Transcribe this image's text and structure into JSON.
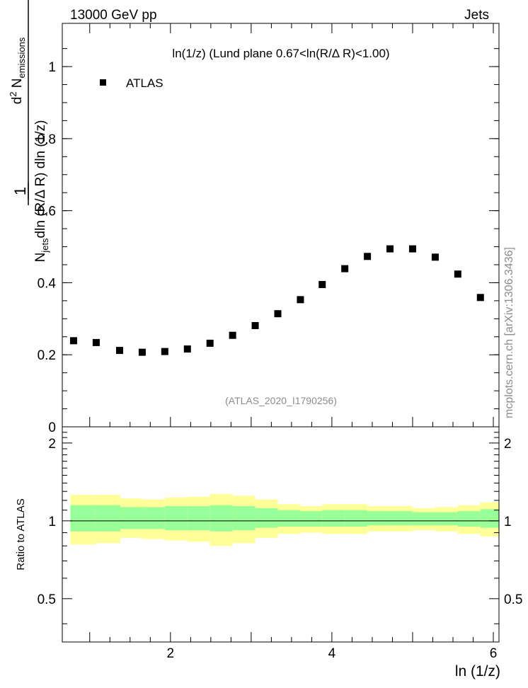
{
  "header": {
    "left": "13000 GeV pp",
    "right": "Jets"
  },
  "side_label": "mcplots.cern.ch [arXiv:1306.3436]",
  "watermark": "(ATLAS_2020_I1790256)",
  "colors": {
    "band_outer": "#ffff99",
    "band_inner": "#99ff99",
    "marker": "#000000",
    "watermark": "#8c8c8c"
  },
  "chart_data": [
    {
      "type": "scatter",
      "title": "ln(1/z) (Lund plane 0.67<ln(R/Δ R)<1.00)",
      "ylabel": "1/N_jets dln (R/Δ R) dln (1/z) · d² N_emissions",
      "ylabel_parts": {
        "frac_num": "1",
        "frac_den_base": "N",
        "frac_den_sub": "jets",
        "frac_den_rest": "dln (R/Δ R) dln (1/z)",
        "d2_prefix": "d",
        "d2_sup": "2",
        "d2_base": " N",
        "d2_sub": "emissions"
      },
      "xlabel": "",
      "xlim": [
        0.66,
        6.07
      ],
      "ylim": [
        0,
        1.12
      ],
      "y_ticks": [
        0,
        0.2,
        0.4,
        0.6,
        0.8,
        1
      ],
      "y_tick_labels": [
        "0",
        "0.2",
        "0.4",
        "0.6",
        "0.8",
        "1"
      ],
      "legend": {
        "position": "top-left",
        "entries": [
          "ATLAS"
        ]
      },
      "series": [
        {
          "name": "ATLAS",
          "x": [
            0.8,
            1.08,
            1.37,
            1.65,
            1.93,
            2.21,
            2.49,
            2.77,
            3.05,
            3.33,
            3.61,
            3.88,
            4.16,
            4.44,
            4.72,
            5.0,
            5.28,
            5.56,
            5.84
          ],
          "y": [
            0.239,
            0.234,
            0.212,
            0.207,
            0.209,
            0.216,
            0.232,
            0.254,
            0.281,
            0.314,
            0.353,
            0.395,
            0.439,
            0.473,
            0.494,
            0.494,
            0.471,
            0.424,
            0.359
          ]
        }
      ]
    },
    {
      "type": "area",
      "title": "",
      "ylabel": "Ratio to ATLAS",
      "xlabel": "ln (1/z)",
      "xlim": [
        0.66,
        6.07
      ],
      "ylim": [
        0.34,
        2.31
      ],
      "x_ticks": [
        2,
        4,
        6
      ],
      "x_tick_labels": [
        "2",
        "4",
        "6"
      ],
      "y_ticks": [
        0.5,
        1,
        2
      ],
      "y_tick_labels": [
        "0.5",
        "1",
        "2"
      ],
      "reference_line": 1,
      "bins": [
        {
          "lo": 0.76,
          "hi": 1.07,
          "inner": [
            0.91,
            1.15
          ],
          "outer": [
            0.81,
            1.26
          ]
        },
        {
          "lo": 1.07,
          "hi": 1.38,
          "inner": [
            0.91,
            1.15
          ],
          "outer": [
            0.82,
            1.26
          ]
        },
        {
          "lo": 1.38,
          "hi": 1.65,
          "inner": [
            0.93,
            1.13
          ],
          "outer": [
            0.86,
            1.22
          ]
        },
        {
          "lo": 1.65,
          "hi": 1.93,
          "inner": [
            0.93,
            1.13
          ],
          "outer": [
            0.85,
            1.21
          ]
        },
        {
          "lo": 1.93,
          "hi": 2.21,
          "inner": [
            0.92,
            1.14
          ],
          "outer": [
            0.84,
            1.23
          ]
        },
        {
          "lo": 2.21,
          "hi": 2.49,
          "inner": [
            0.92,
            1.14
          ],
          "outer": [
            0.83,
            1.24
          ]
        },
        {
          "lo": 2.49,
          "hi": 2.77,
          "inner": [
            0.91,
            1.15
          ],
          "outer": [
            0.8,
            1.27
          ]
        },
        {
          "lo": 2.77,
          "hi": 3.05,
          "inner": [
            0.92,
            1.14
          ],
          "outer": [
            0.82,
            1.25
          ]
        },
        {
          "lo": 3.05,
          "hi": 3.33,
          "inner": [
            0.94,
            1.12
          ],
          "outer": [
            0.86,
            1.21
          ]
        },
        {
          "lo": 3.33,
          "hi": 3.61,
          "inner": [
            0.95,
            1.1
          ],
          "outer": [
            0.89,
            1.16
          ]
        },
        {
          "lo": 3.61,
          "hi": 3.88,
          "inner": [
            0.95,
            1.09
          ],
          "outer": [
            0.9,
            1.14
          ]
        },
        {
          "lo": 3.88,
          "hi": 4.16,
          "inner": [
            0.95,
            1.1
          ],
          "outer": [
            0.89,
            1.16
          ]
        },
        {
          "lo": 4.16,
          "hi": 4.44,
          "inner": [
            0.95,
            1.1
          ],
          "outer": [
            0.89,
            1.16
          ]
        },
        {
          "lo": 4.44,
          "hi": 4.72,
          "inner": [
            0.96,
            1.09
          ],
          "outer": [
            0.91,
            1.14
          ]
        },
        {
          "lo": 4.72,
          "hi": 5.0,
          "inner": [
            0.96,
            1.09
          ],
          "outer": [
            0.91,
            1.14
          ]
        },
        {
          "lo": 5.0,
          "hi": 5.28,
          "inner": [
            0.96,
            1.08
          ],
          "outer": [
            0.92,
            1.12
          ]
        },
        {
          "lo": 5.28,
          "hi": 5.56,
          "inner": [
            0.96,
            1.08
          ],
          "outer": [
            0.91,
            1.13
          ]
        },
        {
          "lo": 5.56,
          "hi": 5.84,
          "inner": [
            0.95,
            1.09
          ],
          "outer": [
            0.89,
            1.15
          ]
        },
        {
          "lo": 5.84,
          "hi": 6.07,
          "inner": [
            0.94,
            1.11
          ],
          "outer": [
            0.87,
            1.18
          ]
        }
      ]
    }
  ]
}
